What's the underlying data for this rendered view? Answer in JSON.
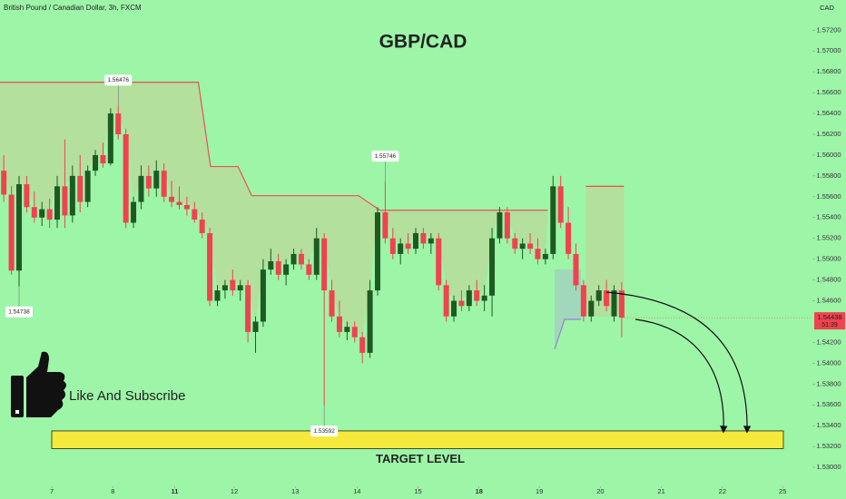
{
  "chart_data": {
    "type": "candlestick",
    "header": "British Pound / Canadian Dollar, 3h, FXCM",
    "currency": "CAD",
    "title": "GBP/CAD",
    "caption": "Like And Subscribe",
    "up_color": "#1e5a22",
    "down_color": "#f0424f",
    "xlim": [
      -0.5,
      106
    ],
    "ylim": [
      1.5287,
      1.5749
    ],
    "x": [
      0,
      1,
      2,
      3,
      4,
      5,
      6,
      7,
      8,
      9,
      10,
      11,
      12,
      13,
      14,
      15,
      16,
      17,
      18,
      19,
      20,
      21,
      22,
      23,
      24,
      25,
      26,
      27,
      28,
      29,
      30,
      31,
      32,
      33,
      34,
      35,
      36,
      37,
      38,
      39,
      40,
      41,
      42,
      43,
      44,
      45,
      46,
      47,
      48,
      49,
      50,
      51,
      52,
      53,
      54,
      55,
      56,
      57,
      58,
      59,
      60,
      61,
      62,
      63,
      64,
      65,
      66,
      67,
      68,
      69,
      70,
      71,
      72,
      73,
      74,
      75,
      76,
      77,
      78,
      79,
      80,
      81
    ],
    "open": [
      1.5585,
      1.5562,
      1.5489,
      1.5572,
      1.555,
      1.554,
      1.5548,
      1.5538,
      1.557,
      1.5542,
      1.558,
      1.5555,
      1.5585,
      1.56,
      1.5592,
      1.564,
      1.562,
      1.5535,
      1.5555,
      1.558,
      1.5568,
      1.5585,
      1.556,
      1.5555,
      1.5552,
      1.5548,
      1.5538,
      1.5525,
      1.546,
      1.547,
      1.548,
      1.547,
      1.5475,
      1.543,
      1.544,
      1.549,
      1.5498,
      1.5485,
      1.5495,
      1.5505,
      1.5495,
      1.5485,
      1.552,
      1.547,
      1.5445,
      1.543,
      1.5435,
      1.5425,
      1.541,
      1.547,
      1.5545,
      1.552,
      1.5505,
      1.5515,
      1.551,
      1.5525,
      1.5515,
      1.552,
      1.5475,
      1.5445,
      1.546,
      1.5455,
      1.547,
      1.546,
      1.5465,
      1.552,
      1.5545,
      1.552,
      1.551,
      1.5515,
      1.551,
      1.55,
      1.5505,
      1.557,
      1.5535,
      1.5505,
      1.5475,
      1.5445,
      1.546,
      1.547,
      1.5445,
      1.547
    ],
    "high": [
      1.56,
      1.557,
      1.558,
      1.558,
      1.5565,
      1.5555,
      1.5558,
      1.558,
      1.5615,
      1.559,
      1.56,
      1.559,
      1.5605,
      1.5612,
      1.5645,
      1.56476,
      1.5625,
      1.556,
      1.559,
      1.559,
      1.5595,
      1.5592,
      1.5575,
      1.557,
      1.556,
      1.5555,
      1.5545,
      1.553,
      1.5475,
      1.548,
      1.549,
      1.548,
      1.548,
      1.5445,
      1.55,
      1.551,
      1.5505,
      1.55,
      1.551,
      1.551,
      1.55,
      1.553,
      1.5525,
      1.548,
      1.546,
      1.544,
      1.544,
      1.543,
      1.548,
      1.555,
      1.55746,
      1.553,
      1.552,
      1.5525,
      1.553,
      1.553,
      1.5525,
      1.5525,
      1.548,
      1.5465,
      1.547,
      1.5475,
      1.548,
      1.5475,
      1.553,
      1.555,
      1.555,
      1.5525,
      1.552,
      1.5525,
      1.552,
      1.551,
      1.558,
      1.558,
      1.555,
      1.5515,
      1.548,
      1.5465,
      1.5475,
      1.548,
      1.5475,
      1.5478
    ],
    "low": [
      1.5555,
      1.5485,
      1.54738,
      1.5545,
      1.5535,
      1.5532,
      1.553,
      1.553,
      1.553,
      1.5535,
      1.5545,
      1.555,
      1.558,
      1.5588,
      1.559,
      1.5615,
      1.553,
      1.553,
      1.5548,
      1.556,
      1.556,
      1.5555,
      1.555,
      1.5548,
      1.5542,
      1.5535,
      1.552,
      1.5455,
      1.5455,
      1.5462,
      1.5465,
      1.546,
      1.542,
      1.541,
      1.5435,
      1.5485,
      1.548,
      1.5475,
      1.549,
      1.549,
      1.548,
      1.548,
      1.53592,
      1.544,
      1.5425,
      1.5422,
      1.542,
      1.54,
      1.5405,
      1.5465,
      1.5515,
      1.55,
      1.5495,
      1.5505,
      1.5505,
      1.551,
      1.5505,
      1.547,
      1.544,
      1.544,
      1.545,
      1.545,
      1.5455,
      1.545,
      1.5445,
      1.5515,
      1.5515,
      1.5505,
      1.55,
      1.5505,
      1.5495,
      1.5495,
      1.55,
      1.553,
      1.55,
      1.547,
      1.544,
      1.544,
      1.5455,
      1.545,
      1.544,
      1.5425
    ],
    "close": [
      1.5562,
      1.5489,
      1.5572,
      1.555,
      1.554,
      1.5548,
      1.5538,
      1.557,
      1.5542,
      1.558,
      1.5555,
      1.5585,
      1.56,
      1.5592,
      1.564,
      1.562,
      1.5535,
      1.5555,
      1.558,
      1.5568,
      1.5585,
      1.556,
      1.5555,
      1.5552,
      1.5548,
      1.5538,
      1.5525,
      1.546,
      1.547,
      1.5475,
      1.547,
      1.5475,
      1.543,
      1.544,
      1.549,
      1.5498,
      1.5485,
      1.5495,
      1.5505,
      1.5495,
      1.5485,
      1.552,
      1.547,
      1.5445,
      1.543,
      1.5435,
      1.5425,
      1.541,
      1.547,
      1.5545,
      1.552,
      1.5505,
      1.5515,
      1.551,
      1.5525,
      1.5515,
      1.552,
      1.5475,
      1.5445,
      1.546,
      1.5455,
      1.547,
      1.546,
      1.5465,
      1.552,
      1.5545,
      1.552,
      1.551,
      1.5515,
      1.551,
      1.55,
      1.5505,
      1.557,
      1.5535,
      1.5505,
      1.5475,
      1.5445,
      1.546,
      1.547,
      1.5455,
      1.547,
      1.54438
    ],
    "overlay": {
      "color": "#e8505a",
      "x": [
        -0.5,
        25.5,
        27.1,
        30.7,
        32.5,
        46.5,
        49.3,
        71.3
      ],
      "values": [
        1.567,
        1.567,
        1.5589,
        1.5589,
        1.5561,
        1.5561,
        1.5547,
        1.5547
      ]
    },
    "zone": {
      "x": [
        76.3,
        81.3
      ],
      "top": 1.557,
      "bottom": 1.5445
    },
    "annotations": [
      {
        "x": 15,
        "value": 1.56476
      },
      {
        "x": 2,
        "value": 1.54738
      },
      {
        "x": 42,
        "value": 1.53592
      },
      {
        "x": 50,
        "value": 1.55746
      }
    ],
    "last_price": 1.54438,
    "countdown": "51:39",
    "target": {
      "label": "TARGET LEVEL",
      "top": 1.5335,
      "bottom": 1.5318,
      "color": "#f5ea3c"
    },
    "yticks": [
      {
        "value": 1.572,
        "label": "1.57200"
      },
      {
        "value": 1.57,
        "label": "1.57000"
      },
      {
        "value": 1.568,
        "label": "1.56800"
      },
      {
        "value": 1.566,
        "label": "1.56600"
      },
      {
        "value": 1.564,
        "label": "1.56400"
      },
      {
        "value": 1.562,
        "label": "1.56200"
      },
      {
        "value": 1.56,
        "label": "1.56000"
      },
      {
        "value": 1.558,
        "label": "1.55800"
      },
      {
        "value": 1.556,
        "label": "1.55600"
      },
      {
        "value": 1.554,
        "label": "1.55400"
      },
      {
        "value": 1.552,
        "label": "1.55200"
      },
      {
        "value": 1.55,
        "label": "1.55000"
      },
      {
        "value": 1.548,
        "label": "1.54800"
      },
      {
        "value": 1.546,
        "label": "1.54600"
      },
      {
        "value": 1.542,
        "label": "1.54200"
      },
      {
        "value": 1.54,
        "label": "1.54000"
      },
      {
        "value": 1.538,
        "label": "1.53800"
      },
      {
        "value": 1.536,
        "label": "1.53600"
      },
      {
        "value": 1.534,
        "label": "1.53400"
      },
      {
        "value": 1.532,
        "label": "1.53200"
      },
      {
        "value": 1.53,
        "label": "1.53000"
      }
    ],
    "xticks": [
      {
        "value": 6.3,
        "label": "7"
      },
      {
        "value": 14.3,
        "label": "8"
      },
      {
        "value": 22.4,
        "label": "11",
        "bold": true
      },
      {
        "value": 30.2,
        "label": "12"
      },
      {
        "value": 38.2,
        "label": "13"
      },
      {
        "value": 46.3,
        "label": "14"
      },
      {
        "value": 54.3,
        "label": "15"
      },
      {
        "value": 62.3,
        "label": "18",
        "bold": true
      },
      {
        "value": 70.2,
        "label": "19"
      },
      {
        "value": 78.2,
        "label": "20"
      },
      {
        "value": 86.2,
        "label": "21"
      },
      {
        "value": 94.2,
        "label": "22"
      },
      {
        "value": 102.1,
        "label": "25"
      }
    ]
  }
}
